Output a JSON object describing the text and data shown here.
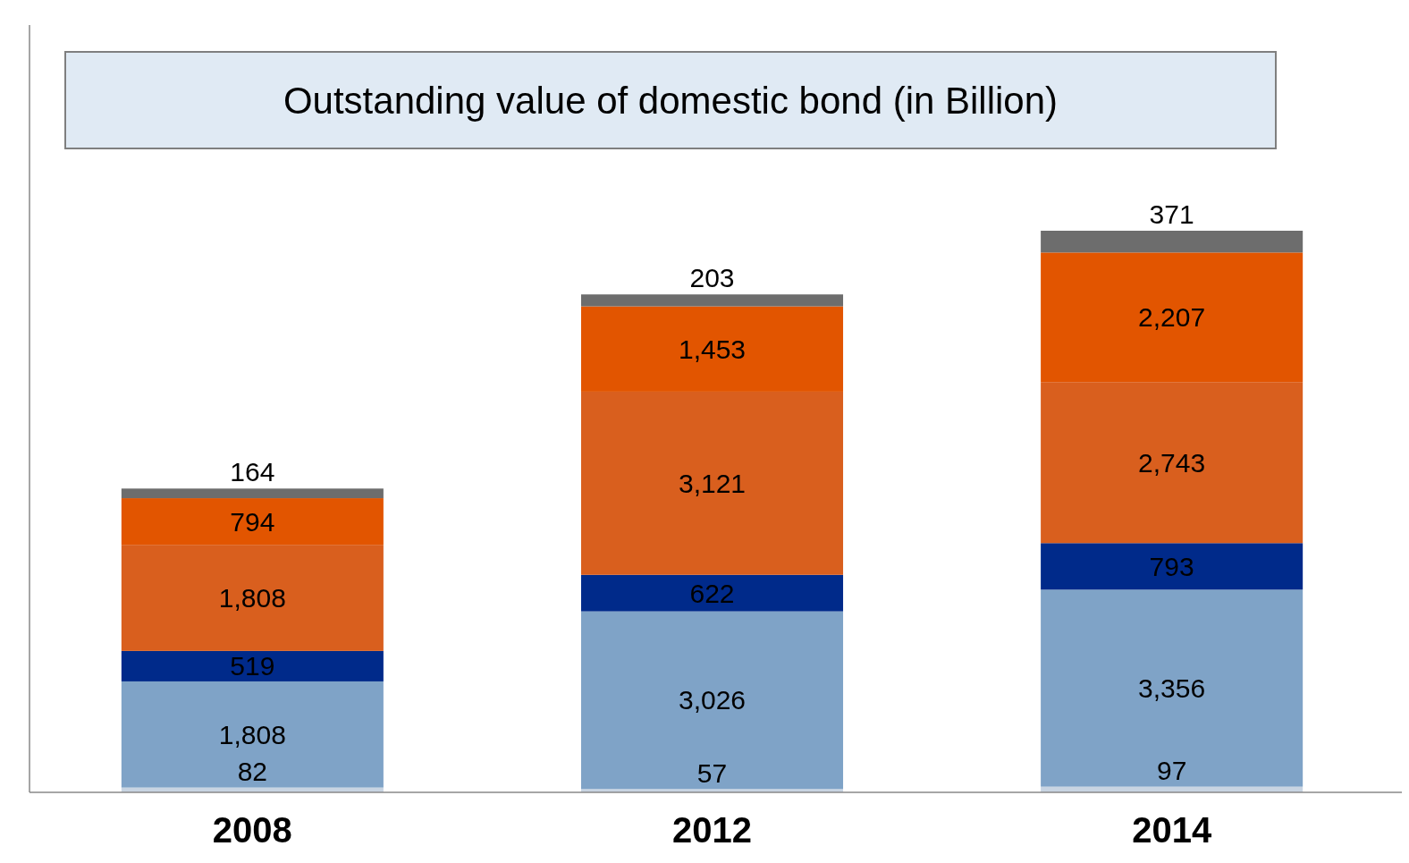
{
  "chart_data": {
    "type": "bar",
    "title": "Outstanding value of domestic bond (in Billion)",
    "categories": [
      "2008",
      "2012",
      "2014"
    ],
    "stacked": true,
    "tick_labels": "x",
    "series": [
      {
        "color": "#c8d4e2",
        "values": [
          82,
          57,
          97
        ],
        "value_labels": [
          "82",
          "57",
          "97"
        ]
      },
      {
        "color": "#7fa3c7",
        "values": [
          1808,
          3026,
          3356
        ],
        "value_labels": [
          "1,808",
          "3,026",
          "3,356"
        ]
      },
      {
        "color": "#002a8a",
        "values": [
          519,
          622,
          793
        ],
        "value_labels": [
          "519",
          "622",
          "793"
        ]
      },
      {
        "color": "#d95f1e",
        "values": [
          1808,
          3121,
          2743
        ],
        "value_labels": [
          "1,808",
          "3,121",
          "2,743"
        ]
      },
      {
        "color": "#e25500",
        "values": [
          794,
          1453,
          2207
        ],
        "value_labels": [
          "794",
          "1,453",
          "2,207"
        ]
      },
      {
        "color": "#6d6d6d",
        "values": [
          164,
          203,
          371
        ],
        "value_labels": [
          "164",
          "203",
          "371"
        ]
      }
    ]
  }
}
